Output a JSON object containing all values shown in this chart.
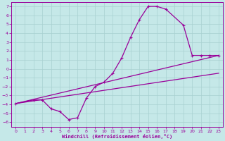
{
  "xlabel": "Windchill (Refroidissement éolien,°C)",
  "xlim": [
    -0.5,
    23.5
  ],
  "ylim": [
    -6.5,
    7.5
  ],
  "xticks": [
    0,
    1,
    2,
    3,
    4,
    5,
    6,
    7,
    8,
    9,
    10,
    11,
    12,
    13,
    14,
    15,
    16,
    17,
    18,
    19,
    20,
    21,
    22,
    23
  ],
  "yticks": [
    -6,
    -5,
    -4,
    -3,
    -2,
    -1,
    0,
    1,
    2,
    3,
    4,
    5,
    6,
    7
  ],
  "bg_color": "#c5e8e8",
  "line_color": "#990099",
  "grid_color": "#a8d0d0",
  "series": [
    {
      "x": [
        0,
        23
      ],
      "y": [
        -3.9,
        -0.5
      ],
      "has_markers": false,
      "lw": 0.9
    },
    {
      "x": [
        0,
        23
      ],
      "y": [
        -3.9,
        1.5
      ],
      "has_markers": false,
      "lw": 0.9
    },
    {
      "x": [
        0,
        2,
        3,
        4,
        5,
        6,
        7,
        8,
        9,
        10,
        11,
        12,
        13,
        14,
        15,
        16,
        17,
        19,
        20,
        21,
        22,
        23
      ],
      "y": [
        -3.9,
        -3.5,
        -3.5,
        -4.5,
        -4.8,
        -5.7,
        -5.5,
        -3.3,
        -2.0,
        -1.5,
        -0.5,
        1.2,
        3.5,
        5.5,
        7.0,
        7.0,
        6.7,
        4.9,
        1.5,
        1.5,
        1.5,
        1.5
      ],
      "has_markers": true,
      "lw": 0.9
    }
  ]
}
